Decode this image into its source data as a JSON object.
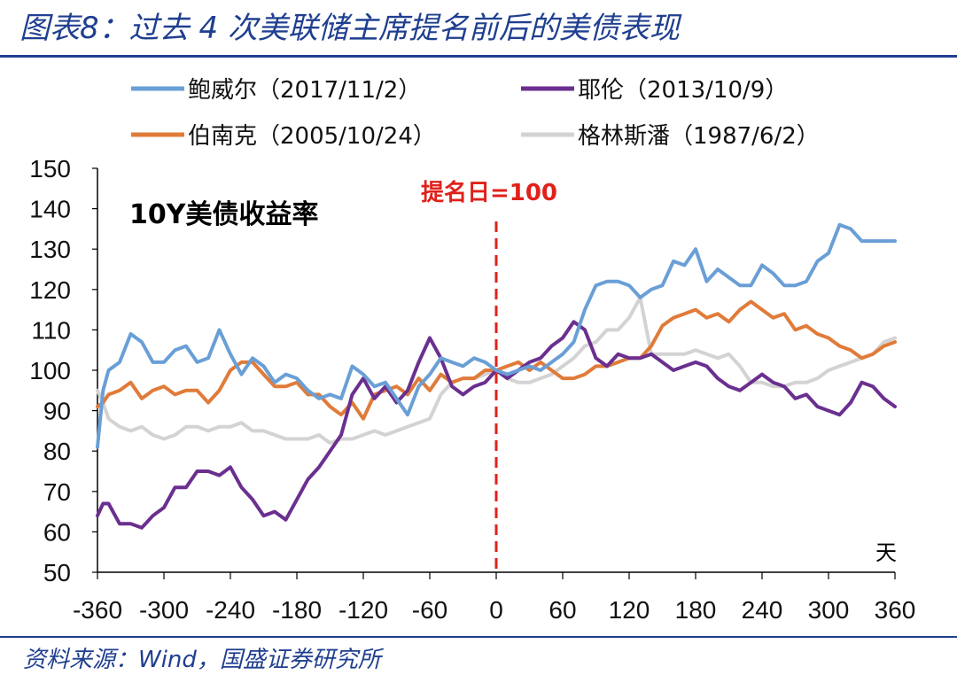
{
  "header": {
    "title": "图表8：过去 4 次美联储主席提名前后的美债表现"
  },
  "footer": {
    "source": "资料来源：Wind，国盛证券研究所"
  },
  "chart_data": {
    "type": "line",
    "subtitle": "10Y美债收益率",
    "annotation": "提名日=100",
    "xlabel": "天",
    "xticks": [
      -360,
      -300,
      -240,
      -180,
      -120,
      -60,
      0,
      60,
      120,
      180,
      240,
      300,
      360
    ],
    "yticks": [
      50,
      60,
      70,
      80,
      90,
      100,
      110,
      120,
      130,
      140,
      150
    ],
    "xlim": [
      -360,
      360
    ],
    "ylim": [
      50,
      150
    ],
    "legend_position": "top",
    "series": [
      {
        "name": "鲍威尔（2017/11/2）",
        "color": "#6a9fd6",
        "x": [
          -360,
          -355,
          -350,
          -340,
          -330,
          -320,
          -310,
          -300,
          -290,
          -280,
          -270,
          -260,
          -250,
          -240,
          -230,
          -220,
          -210,
          -200,
          -190,
          -180,
          -170,
          -160,
          -150,
          -140,
          -130,
          -120,
          -110,
          -100,
          -90,
          -80,
          -70,
          -60,
          -50,
          -40,
          -30,
          -20,
          -10,
          0,
          10,
          20,
          30,
          40,
          50,
          60,
          70,
          80,
          90,
          100,
          110,
          120,
          130,
          140,
          150,
          160,
          170,
          180,
          190,
          200,
          210,
          220,
          230,
          240,
          250,
          260,
          270,
          280,
          290,
          300,
          310,
          320,
          330,
          340,
          350,
          360
        ],
        "values": [
          81,
          95,
          100,
          102,
          109,
          107,
          102,
          102,
          105,
          106,
          102,
          103,
          110,
          104,
          99,
          103,
          101,
          97,
          99,
          98,
          95,
          93,
          94,
          93,
          101,
          99,
          96,
          97,
          93,
          89,
          96,
          99,
          103,
          102,
          101,
          103,
          102,
          100,
          99,
          100,
          101,
          100,
          102,
          104,
          107,
          115,
          121,
          122,
          122,
          121,
          118,
          120,
          121,
          127,
          126,
          130,
          122,
          125,
          123,
          121,
          121,
          126,
          124,
          121,
          121,
          122,
          127,
          129,
          136,
          135,
          132,
          132,
          132,
          132
        ]
      },
      {
        "name": "耶伦（2013/10/9）",
        "color": "#6a2f8f",
        "x": [
          -360,
          -355,
          -350,
          -340,
          -330,
          -320,
          -310,
          -300,
          -290,
          -280,
          -270,
          -260,
          -250,
          -240,
          -230,
          -220,
          -210,
          -200,
          -190,
          -180,
          -170,
          -160,
          -150,
          -140,
          -130,
          -120,
          -110,
          -100,
          -90,
          -80,
          -70,
          -60,
          -50,
          -40,
          -30,
          -20,
          -10,
          0,
          10,
          20,
          30,
          40,
          50,
          60,
          70,
          80,
          90,
          100,
          110,
          120,
          130,
          140,
          150,
          160,
          170,
          180,
          190,
          200,
          210,
          220,
          230,
          240,
          250,
          260,
          270,
          280,
          290,
          300,
          310,
          320,
          330,
          340,
          350,
          360
        ],
        "values": [
          64,
          67,
          67,
          62,
          62,
          61,
          64,
          66,
          71,
          71,
          75,
          75,
          74,
          76,
          71,
          68,
          64,
          65,
          63,
          68,
          73,
          76,
          80,
          84,
          94,
          98,
          93,
          96,
          92,
          95,
          102,
          108,
          103,
          96,
          94,
          96,
          97,
          100,
          98,
          100,
          102,
          103,
          106,
          108,
          112,
          110,
          103,
          101,
          104,
          103,
          103,
          104,
          102,
          100,
          101,
          102,
          101,
          98,
          96,
          95,
          97,
          99,
          97,
          96,
          93,
          94,
          91,
          90,
          89,
          92,
          97,
          96,
          93,
          91
        ]
      },
      {
        "name": "伯南克（2005/10/24）",
        "color": "#e07b39",
        "x": [
          -360,
          -355,
          -350,
          -340,
          -330,
          -320,
          -310,
          -300,
          -290,
          -280,
          -270,
          -260,
          -250,
          -240,
          -230,
          -220,
          -210,
          -200,
          -190,
          -180,
          -170,
          -160,
          -150,
          -140,
          -130,
          -120,
          -110,
          -100,
          -90,
          -80,
          -70,
          -60,
          -50,
          -40,
          -30,
          -20,
          -10,
          0,
          10,
          20,
          30,
          40,
          50,
          60,
          70,
          80,
          90,
          100,
          110,
          120,
          130,
          140,
          150,
          160,
          170,
          180,
          190,
          200,
          210,
          220,
          230,
          240,
          250,
          260,
          270,
          280,
          290,
          300,
          310,
          320,
          330,
          340,
          350,
          360
        ],
        "values": [
          91,
          92,
          94,
          95,
          97,
          93,
          95,
          96,
          94,
          95,
          95,
          92,
          95,
          100,
          102,
          102,
          99,
          96,
          96,
          97,
          94,
          94,
          91,
          89,
          92,
          88,
          94,
          95,
          96,
          94,
          98,
          95,
          99,
          97,
          98,
          98,
          100,
          100,
          101,
          102,
          100,
          102,
          100,
          98,
          98,
          99,
          101,
          101,
          102,
          103,
          103,
          106,
          111,
          113,
          114,
          115,
          113,
          114,
          112,
          115,
          117,
          115,
          113,
          114,
          110,
          111,
          109,
          108,
          106,
          105,
          103,
          104,
          106,
          107
        ]
      },
      {
        "name": "格林斯潘（1987/6/2）",
        "color": "#d3d3d3",
        "x": [
          -360,
          -355,
          -350,
          -340,
          -330,
          -320,
          -310,
          -300,
          -290,
          -280,
          -270,
          -260,
          -250,
          -240,
          -230,
          -220,
          -210,
          -200,
          -190,
          -180,
          -170,
          -160,
          -150,
          -140,
          -130,
          -120,
          -110,
          -100,
          -90,
          -80,
          -70,
          -60,
          -50,
          -40,
          -30,
          -20,
          -10,
          0,
          10,
          20,
          30,
          40,
          50,
          60,
          70,
          80,
          90,
          100,
          110,
          120,
          130,
          140,
          150,
          160,
          170,
          180,
          190,
          200,
          210,
          220,
          230,
          240,
          250,
          260,
          270,
          280,
          290,
          300,
          310,
          320,
          330,
          340,
          350,
          360
        ],
        "values": [
          95,
          92,
          88,
          86,
          85,
          86,
          84,
          83,
          84,
          86,
          86,
          85,
          86,
          86,
          87,
          85,
          85,
          84,
          83,
          83,
          83,
          84,
          82,
          83,
          83,
          84,
          85,
          84,
          85,
          86,
          87,
          88,
          94,
          97,
          98,
          98,
          99,
          100,
          98,
          97,
          97,
          98,
          99,
          101,
          103,
          106,
          107,
          110,
          110,
          113,
          118,
          104,
          104,
          104,
          104,
          105,
          104,
          103,
          104,
          101,
          97,
          97,
          96,
          96,
          97,
          97,
          98,
          100,
          101,
          102,
          103,
          104,
          107,
          108
        ]
      }
    ]
  }
}
